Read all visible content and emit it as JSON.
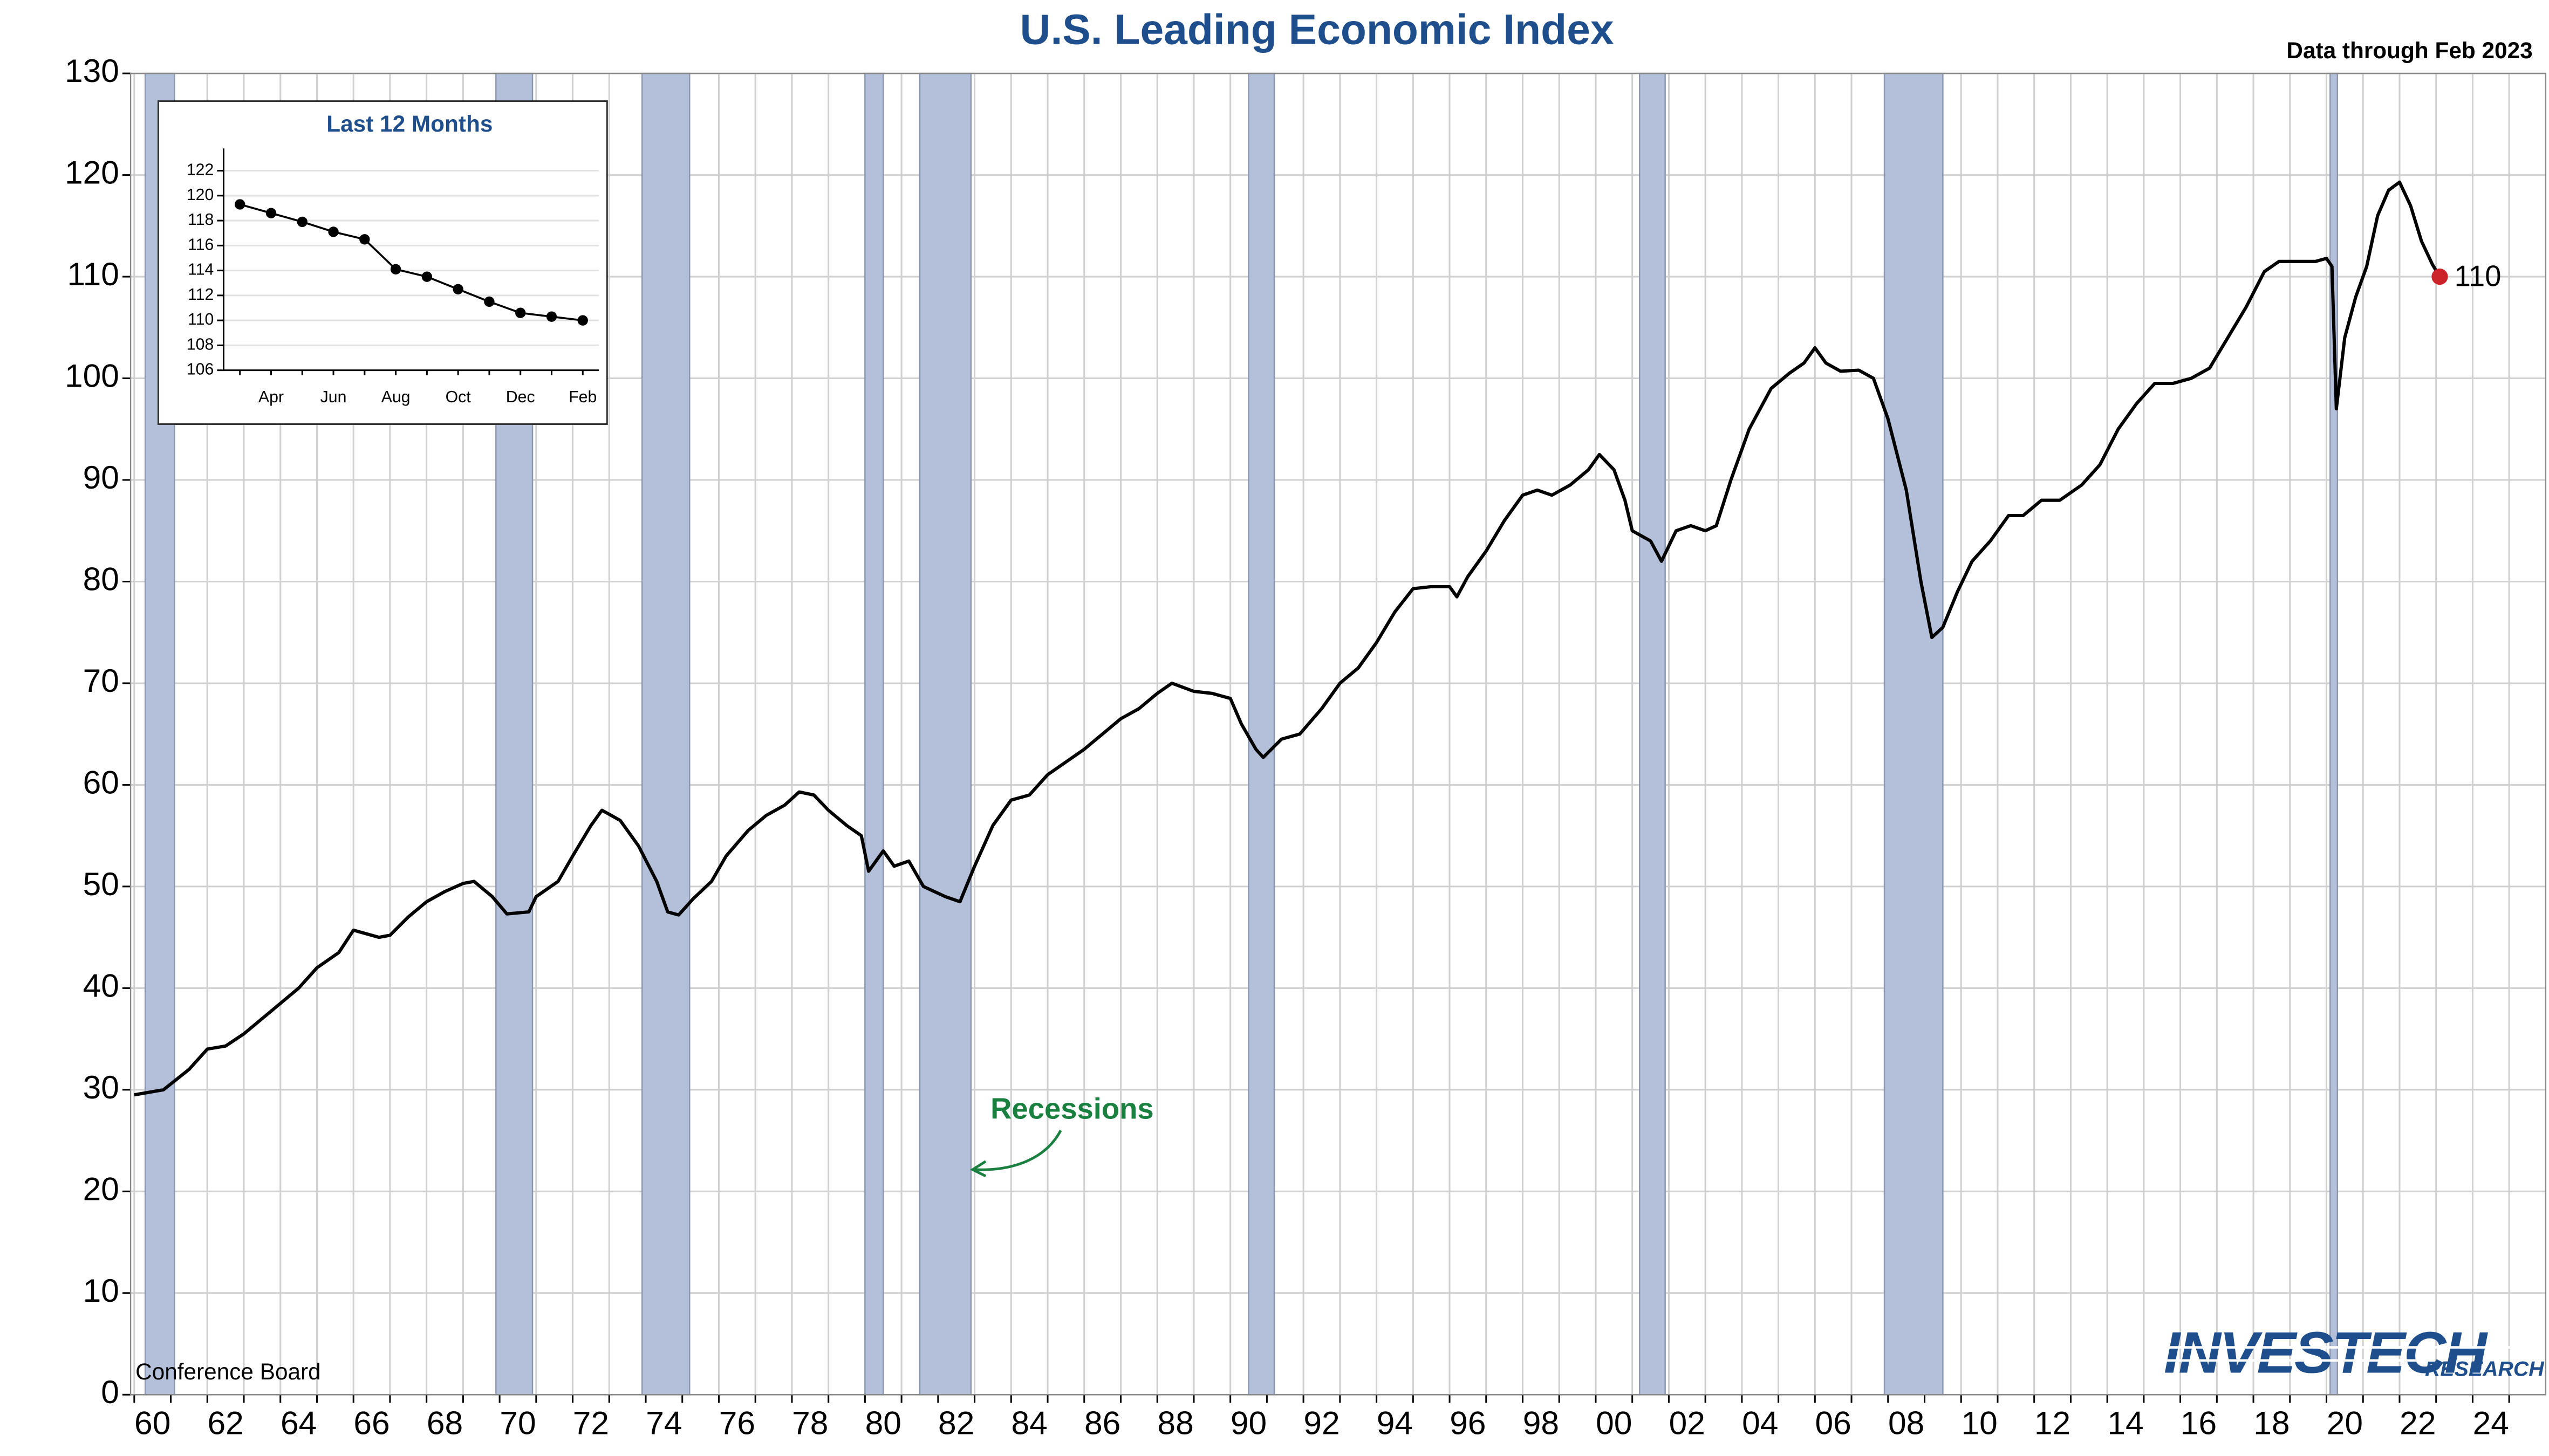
{
  "chart_data": [
    {
      "type": "line",
      "title": "U.S. Leading Economic Index",
      "subtitle": "Data through Feb 2023",
      "source": "Conference Board",
      "annotation": "Recessions",
      "logo": {
        "name": "INVESTECH",
        "tagline": "RESEARCH"
      },
      "color": "#000000",
      "end_marker_color": "#cc2229",
      "recession_color": "#b4c0d9",
      "grid": true,
      "xlim": [
        1959.9,
        2026
      ],
      "ylim": [
        0,
        130
      ],
      "yticks": [
        0,
        10,
        20,
        30,
        40,
        50,
        60,
        70,
        80,
        90,
        100,
        110,
        120,
        130
      ],
      "xticks": [
        {
          "value": 1960,
          "label": "60"
        },
        {
          "value": 1962,
          "label": "62"
        },
        {
          "value": 1964,
          "label": "64"
        },
        {
          "value": 1966,
          "label": "66"
        },
        {
          "value": 1968,
          "label": "68"
        },
        {
          "value": 1970,
          "label": "70"
        },
        {
          "value": 1972,
          "label": "72"
        },
        {
          "value": 1974,
          "label": "74"
        },
        {
          "value": 1976,
          "label": "76"
        },
        {
          "value": 1978,
          "label": "78"
        },
        {
          "value": 1980,
          "label": "80"
        },
        {
          "value": 1982,
          "label": "82"
        },
        {
          "value": 1984,
          "label": "84"
        },
        {
          "value": 1986,
          "label": "86"
        },
        {
          "value": 1988,
          "label": "88"
        },
        {
          "value": 1990,
          "label": "90"
        },
        {
          "value": 1992,
          "label": "92"
        },
        {
          "value": 1994,
          "label": "94"
        },
        {
          "value": 1996,
          "label": "96"
        },
        {
          "value": 1998,
          "label": "98"
        },
        {
          "value": 2000,
          "label": "00"
        },
        {
          "value": 2002,
          "label": "02"
        },
        {
          "value": 2004,
          "label": "04"
        },
        {
          "value": 2006,
          "label": "06"
        },
        {
          "value": 2008,
          "label": "08"
        },
        {
          "value": 2010,
          "label": "10"
        },
        {
          "value": 2012,
          "label": "12"
        },
        {
          "value": 2014,
          "label": "14"
        },
        {
          "value": 2016,
          "label": "16"
        },
        {
          "value": 2018,
          "label": "18"
        },
        {
          "value": 2020,
          "label": "20"
        },
        {
          "value": 2022,
          "label": "22"
        },
        {
          "value": 2024,
          "label": "24"
        }
      ],
      "xminor_ticks": [
        1961,
        1963,
        1965,
        1967,
        1969,
        1971,
        1973,
        1975,
        1977,
        1979,
        1981,
        1983,
        1985,
        1987,
        1989,
        1991,
        1993,
        1995,
        1997,
        1999,
        2001,
        2003,
        2005,
        2007,
        2009,
        2011,
        2013,
        2015,
        2017,
        2019,
        2021,
        2023,
        2025
      ],
      "recessions": [
        [
          1960.3,
          1961.1
        ],
        [
          1969.9,
          1970.9
        ],
        [
          1973.9,
          1975.2
        ],
        [
          1980.0,
          1980.5
        ],
        [
          1981.5,
          1982.9
        ],
        [
          1990.5,
          1991.2
        ],
        [
          2001.2,
          2001.9
        ],
        [
          2007.9,
          2009.5
        ],
        [
          2020.1,
          2020.3
        ]
      ],
      "x": [
        1960.0,
        1960.8,
        1961.5,
        1962,
        1962.5,
        1963,
        1963.5,
        1964,
        1964.5,
        1965,
        1965.6,
        1966,
        1966.7,
        1967,
        1967.5,
        1968,
        1968.5,
        1969,
        1969.3,
        1969.8,
        1970.2,
        1970.8,
        1971,
        1971.6,
        1972,
        1972.5,
        1972.8,
        1973.3,
        1973.8,
        1974.3,
        1974.6,
        1974.9,
        1975.3,
        1975.8,
        1976.2,
        1976.8,
        1977.3,
        1977.8,
        1978.2,
        1978.6,
        1979,
        1979.5,
        1979.9,
        1980.1,
        1980.5,
        1980.8,
        1981.2,
        1981.6,
        1982.2,
        1982.6,
        1983,
        1983.5,
        1984,
        1984.5,
        1985,
        1986,
        1987,
        1987.5,
        1988,
        1988.4,
        1989,
        1989.5,
        1990,
        1990.3,
        1990.7,
        1990.9,
        1991.4,
        1991.9,
        1992.5,
        1993,
        1993.5,
        1994,
        1994.5,
        1995,
        1995.5,
        1996,
        1996.2,
        1996.5,
        1997,
        1997.5,
        1998,
        1998.4,
        1998.8,
        1999.3,
        1999.8,
        2000.1,
        2000.5,
        2000.8,
        2001,
        2001.5,
        2001.8,
        2002.2,
        2002.6,
        2003,
        2003.3,
        2003.7,
        2004.2,
        2004.8,
        2005.3,
        2005.7,
        2006.0,
        2006.3,
        2006.7,
        2007.2,
        2007.6,
        2008,
        2008.5,
        2008.9,
        2009.2,
        2009.5,
        2009.9,
        2010.3,
        2010.8,
        2011.3,
        2011.7,
        2012.2,
        2012.7,
        2013.3,
        2013.8,
        2014.3,
        2014.8,
        2015.3,
        2015.8,
        2016.3,
        2016.8,
        2017.3,
        2017.8,
        2018.3,
        2018.7,
        2019.2,
        2019.7,
        2020.0,
        2020.15,
        2020.27,
        2020.5,
        2020.8,
        2021.1,
        2021.4,
        2021.7,
        2022.0,
        2022.3,
        2022.6,
        2022.9,
        2023.1
      ],
      "values": [
        29.5,
        30,
        32,
        34,
        34.3,
        35.5,
        37,
        38.5,
        40,
        42,
        43.5,
        45.7,
        45,
        45.2,
        47,
        48.5,
        49.5,
        50.3,
        50.5,
        49,
        47.3,
        47.5,
        49,
        50.5,
        53,
        56,
        57.5,
        56.5,
        54,
        50.5,
        47.5,
        47.2,
        48.8,
        50.5,
        53,
        55.5,
        57,
        58,
        59.3,
        59,
        57.5,
        56,
        55,
        51.5,
        53.5,
        52,
        52.5,
        50,
        49,
        48.5,
        52,
        56,
        58.5,
        59,
        61,
        63.5,
        66.5,
        67.5,
        69,
        70,
        69.2,
        69,
        68.5,
        66,
        63.5,
        62.7,
        64.5,
        65,
        67.5,
        70,
        71.5,
        74,
        77,
        79.3,
        79.5,
        79.5,
        78.5,
        80.5,
        83,
        86,
        88.5,
        89,
        88.5,
        89.5,
        91,
        92.5,
        91,
        88,
        85,
        84,
        82,
        85,
        85.5,
        85,
        85.5,
        90,
        95,
        99,
        100.5,
        101.5,
        103,
        101.5,
        100.7,
        100.8,
        100,
        96,
        89,
        80,
        74.5,
        75.5,
        79,
        82,
        84,
        86.5,
        86.5,
        88,
        88,
        89.5,
        91.5,
        95,
        97.5,
        99.5,
        99.5,
        100,
        101,
        104,
        107,
        110.5,
        111.5,
        111.5,
        111.5,
        111.8,
        111,
        97,
        104,
        108,
        111,
        116,
        118.5,
        119.3,
        117,
        113.5,
        111.2,
        110
      ]
    },
    {
      "type": "line",
      "title": "Last 12 Months",
      "color": "#000000",
      "categories": [
        null,
        "Apr",
        null,
        "Jun",
        null,
        "Aug",
        null,
        "Oct",
        null,
        "Dec",
        null,
        "Feb"
      ],
      "values": [
        119.3,
        118.6,
        117.9,
        117.1,
        116.5,
        114.1,
        113.5,
        112.5,
        111.5,
        110.6,
        110.3,
        110.0
      ],
      "ylim": [
        106,
        123
      ],
      "yticks": [
        106,
        108,
        110,
        112,
        114,
        116,
        118,
        120,
        122
      ],
      "grid": true
    }
  ]
}
